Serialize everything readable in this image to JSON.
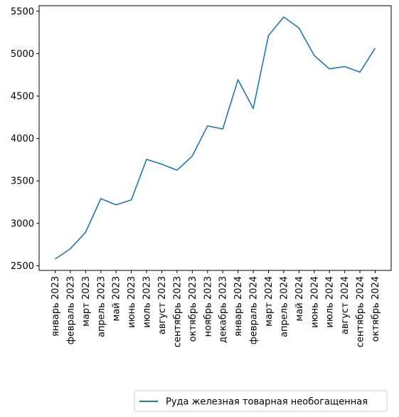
{
  "chart_data": {
    "type": "line",
    "title": "",
    "xlabel": "",
    "ylabel": "",
    "categories": [
      "январь 2023",
      "февраль 2023",
      "март 2023",
      "апрель 2023",
      "май 2023",
      "июнь 2023",
      "июль 2023",
      "август 2023",
      "сентябрь 2023",
      "октябрь 2023",
      "ноябрь 2023",
      "декабрь 2023",
      "январь 2024",
      "февраль 2024",
      "март 2024",
      "апрель 2024",
      "май 2024",
      "июнь 2024",
      "июль 2024",
      "август 2024",
      "сентябрь 2024",
      "октябрь 2024"
    ],
    "series": [
      {
        "name": "Руда железная товарная необогащенная",
        "color": "#1f77b4",
        "values": [
          2578,
          2700,
          2895,
          3290,
          3218,
          3276,
          3754,
          3697,
          3626,
          3793,
          4148,
          4112,
          4693,
          4352,
          5213,
          5432,
          5303,
          4978,
          4820,
          4848,
          4782,
          5064
        ]
      }
    ],
    "ylim": [
      2445,
      5565
    ],
    "yticks": [
      2500,
      3000,
      3500,
      4000,
      4500,
      5000,
      5500
    ],
    "grid": false,
    "legend": "bottom-right, below plot"
  }
}
